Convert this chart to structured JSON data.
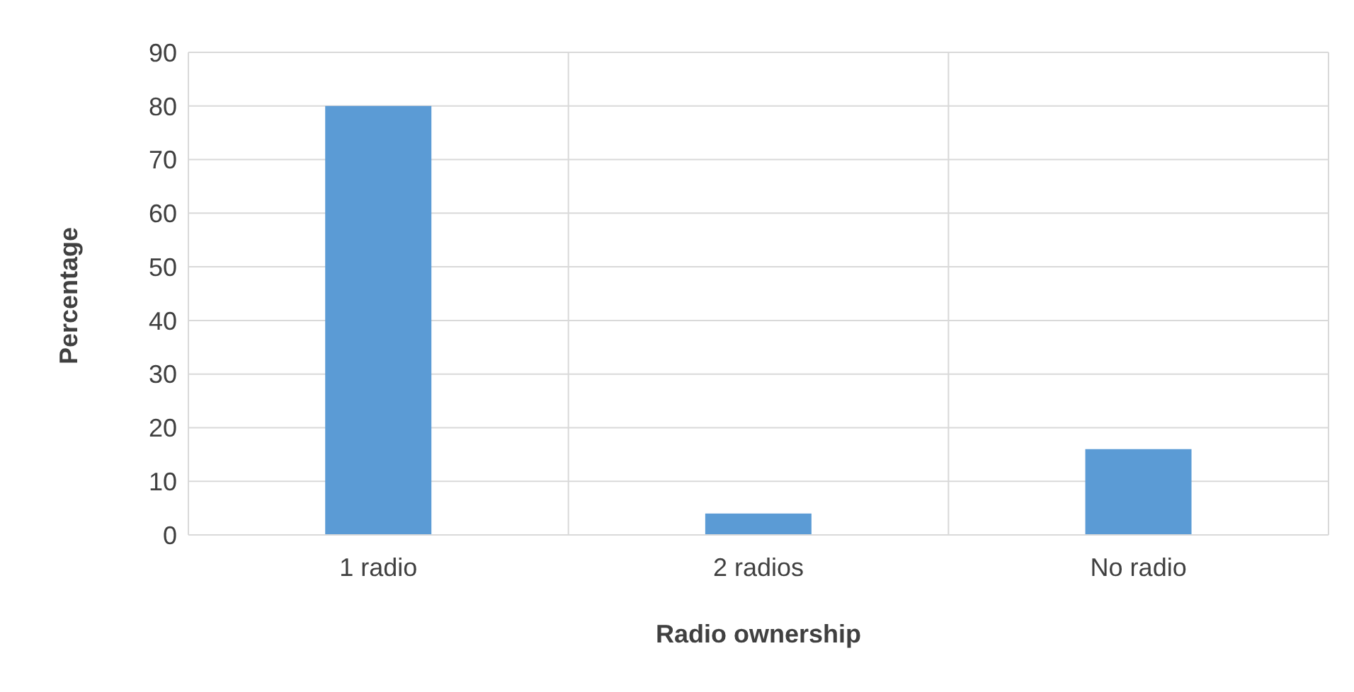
{
  "chart_data": {
    "type": "bar",
    "xlabel": "Radio ownership",
    "ylabel": "Percentage",
    "categories": [
      "1 radio",
      "2 radios",
      "No radio"
    ],
    "values": [
      80,
      4,
      16
    ],
    "color": "#5b9bd5",
    "ylim": [
      0,
      90
    ],
    "yticks": [
      0,
      10,
      20,
      30,
      40,
      50,
      60,
      70,
      80,
      90
    ],
    "grid": true
  }
}
